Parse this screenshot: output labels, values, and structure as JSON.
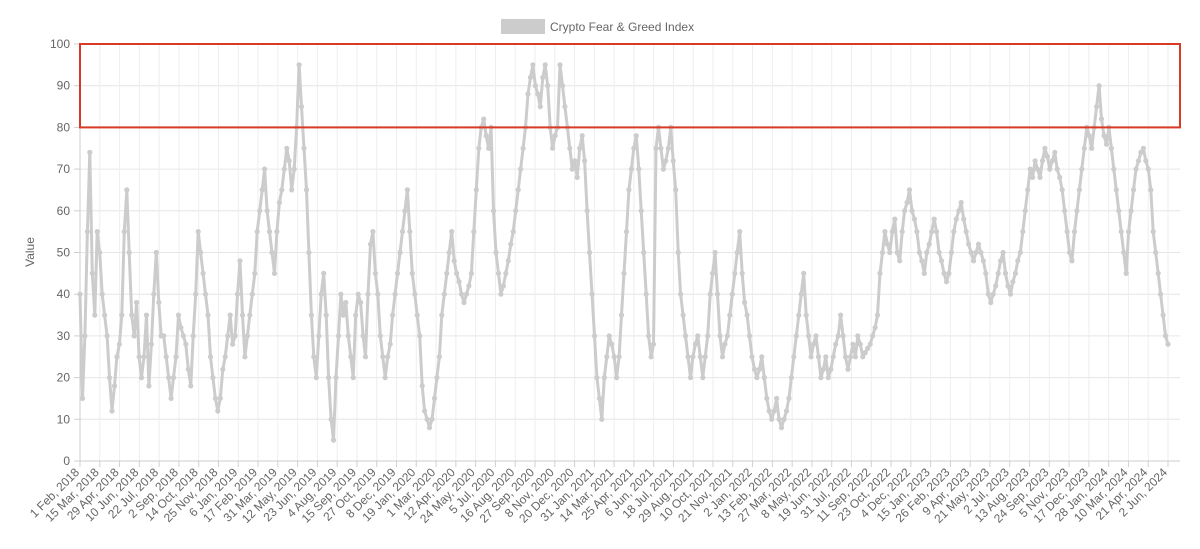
{
  "chart_data": {
    "type": "line",
    "ylabel": "Value",
    "ylim": [
      0,
      100
    ],
    "yticks": [
      0,
      10,
      20,
      30,
      40,
      50,
      60,
      70,
      80,
      90,
      100
    ],
    "grid": true,
    "legend": {
      "position": "top-center",
      "entries": [
        "Crypto Fear & Greed Index"
      ]
    },
    "x_tick_labels": [
      "1 Feb, 2018",
      "15 Mar, 2018",
      "29 Apr, 2018",
      "10 Jun, 2018",
      "22 Jul, 2018",
      "2 Sep, 2018",
      "14 Oct, 2018",
      "25 Nov, 2018",
      "6 Jan, 2019",
      "17 Feb, 2019",
      "31 Mar, 2019",
      "12 May, 2019",
      "23 Jun, 2019",
      "4 Aug, 2019",
      "15 Sep, 2019",
      "27 Oct, 2019",
      "8 Dec, 2019",
      "19 Jan, 2020",
      "1 Mar, 2020",
      "12 Apr, 2020",
      "24 May, 2020",
      "5 Jul, 2020",
      "16 Aug, 2020",
      "27 Sep, 2020",
      "8 Nov, 2020",
      "20 Dec, 2020",
      "31 Jan, 2021",
      "14 Mar, 2021",
      "25 Apr, 2021",
      "6 Jun, 2021",
      "18 Jul, 2021",
      "29 Aug, 2021",
      "10 Oct, 2021",
      "21 Nov, 2021",
      "2 Jan, 2022",
      "13 Feb, 2022",
      "27 Mar, 2022",
      "8 May, 2022",
      "19 Jun, 2022",
      "31 Jul, 2022",
      "11 Sep, 2022",
      "23 Oct, 2022",
      "4 Dec, 2022",
      "15 Jan, 2023",
      "26 Feb, 2023",
      "9 Apr, 2023",
      "21 May, 2023",
      "2 Jul, 2023",
      "13 Aug, 2023",
      "24 Sep, 2023",
      "5 Nov, 2023",
      "17 Dec, 2023",
      "28 Jan, 2024",
      "10 Mar, 2024",
      "21 Apr, 2024",
      "2 Jun, 2024"
    ],
    "series": [
      {
        "name": "Crypto Fear & Greed Index",
        "color": "#cccccc",
        "values": [
          40,
          15,
          30,
          55,
          74,
          45,
          35,
          55,
          50,
          40,
          35,
          30,
          20,
          12,
          18,
          25,
          28,
          35,
          55,
          65,
          50,
          35,
          30,
          38,
          25,
          20,
          25,
          35,
          18,
          28,
          40,
          50,
          38,
          30,
          30,
          25,
          20,
          15,
          20,
          25,
          35,
          32,
          30,
          28,
          22,
          18,
          30,
          40,
          55,
          50,
          45,
          40,
          35,
          25,
          20,
          15,
          12,
          15,
          22,
          25,
          30,
          35,
          28,
          30,
          40,
          48,
          35,
          25,
          30,
          35,
          40,
          45,
          55,
          60,
          65,
          70,
          60,
          55,
          50,
          45,
          55,
          62,
          65,
          70,
          75,
          72,
          65,
          70,
          80,
          95,
          85,
          75,
          65,
          50,
          35,
          25,
          20,
          30,
          40,
          45,
          35,
          20,
          10,
          5,
          20,
          30,
          40,
          35,
          38,
          30,
          25,
          20,
          35,
          40,
          38,
          30,
          25,
          40,
          52,
          55,
          45,
          40,
          30,
          25,
          20,
          25,
          28,
          35,
          40,
          45,
          50,
          55,
          60,
          65,
          55,
          45,
          40,
          35,
          30,
          18,
          12,
          10,
          8,
          10,
          15,
          20,
          25,
          35,
          40,
          45,
          50,
          55,
          48,
          45,
          43,
          40,
          38,
          40,
          42,
          45,
          55,
          65,
          75,
          80,
          82,
          78,
          75,
          80,
          60,
          50,
          45,
          40,
          42,
          45,
          48,
          52,
          55,
          60,
          65,
          70,
          75,
          80,
          88,
          92,
          95,
          90,
          88,
          85,
          92,
          95,
          90,
          80,
          75,
          78,
          80,
          95,
          90,
          85,
          80,
          75,
          70,
          72,
          68,
          75,
          78,
          72,
          60,
          50,
          40,
          30,
          20,
          15,
          10,
          20,
          25,
          30,
          28,
          25,
          20,
          25,
          35,
          45,
          55,
          65,
          70,
          75,
          78,
          70,
          60,
          50,
          40,
          30,
          25,
          28,
          75,
          80,
          75,
          70,
          72,
          75,
          80,
          72,
          65,
          50,
          40,
          35,
          30,
          25,
          20,
          25,
          28,
          30,
          25,
          20,
          25,
          30,
          40,
          45,
          50,
          40,
          30,
          25,
          28,
          30,
          35,
          40,
          45,
          50,
          55,
          45,
          38,
          35,
          30,
          25,
          22,
          20,
          22,
          25,
          20,
          15,
          12,
          10,
          12,
          15,
          10,
          8,
          10,
          12,
          15,
          20,
          25,
          30,
          35,
          40,
          45,
          35,
          30,
          25,
          28,
          30,
          25,
          20,
          22,
          25,
          20,
          22,
          25,
          28,
          30,
          35,
          30,
          25,
          22,
          25,
          28,
          25,
          30,
          28,
          25,
          26,
          27,
          28,
          30,
          32,
          35,
          45,
          50,
          55,
          52,
          50,
          55,
          58,
          50,
          48,
          55,
          60,
          62,
          65,
          60,
          58,
          55,
          50,
          48,
          45,
          50,
          52,
          55,
          58,
          55,
          50,
          48,
          45,
          43,
          45,
          50,
          55,
          58,
          60,
          62,
          58,
          55,
          52,
          50,
          48,
          50,
          52,
          50,
          48,
          45,
          40,
          38,
          40,
          42,
          45,
          48,
          50,
          45,
          42,
          40,
          43,
          45,
          48,
          50,
          55,
          60,
          65,
          70,
          68,
          72,
          70,
          68,
          72,
          75,
          73,
          70,
          72,
          74,
          70,
          68,
          65,
          60,
          55,
          50,
          48,
          55,
          60,
          65,
          70,
          75,
          80,
          78,
          75,
          80,
          85,
          90,
          82,
          78,
          76,
          80,
          75,
          70,
          65,
          60,
          55,
          50,
          45,
          55,
          60,
          65,
          70,
          72,
          74,
          75,
          72,
          70,
          65,
          55,
          50,
          45,
          40,
          35,
          30,
          28
        ]
      }
    ]
  },
  "annotations": {
    "highlight_range": [
      80,
      100
    ],
    "highlight_color": "#d93a26"
  }
}
